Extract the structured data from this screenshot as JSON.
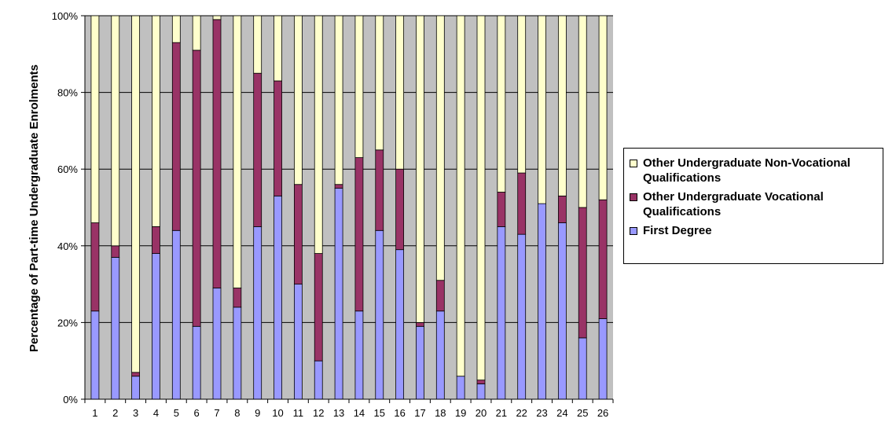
{
  "chart_data": {
    "type": "bar",
    "stacked": true,
    "percent_stacked": true,
    "ylabel": "Percentage of Part-time Undergraduate Enrolments",
    "xlabel": "",
    "ylim": [
      0,
      100
    ],
    "ytick_labels": [
      "0%",
      "20%",
      "40%",
      "60%",
      "80%",
      "100%"
    ],
    "grid": true,
    "legend_position": "right",
    "categories": [
      "1",
      "2",
      "3",
      "4",
      "5",
      "6",
      "7",
      "8",
      "9",
      "10",
      "11",
      "12",
      "13",
      "14",
      "15",
      "16",
      "17",
      "18",
      "19",
      "20",
      "21",
      "22",
      "23",
      "24",
      "25",
      "26"
    ],
    "series": [
      {
        "name": "First Degree",
        "color": "#9999ff",
        "values": [
          23,
          37,
          6,
          38,
          44,
          19,
          29,
          24,
          45,
          53,
          30,
          10,
          55,
          23,
          44,
          39,
          19,
          23,
          6,
          4,
          45,
          43,
          51,
          46,
          16,
          21
        ]
      },
      {
        "name": "Other Undergraduate Vocational Qualifications",
        "color": "#993366",
        "values": [
          23,
          3,
          1,
          7,
          49,
          72,
          70,
          5,
          40,
          30,
          26,
          28,
          1,
          40,
          21,
          21,
          1,
          8,
          0,
          1,
          9,
          16,
          0,
          7,
          34,
          31
        ]
      },
      {
        "name": "Other Undergraduate Non-Vocational Qualifications",
        "color": "#ffffcc",
        "values": [
          54,
          60,
          93,
          55,
          7,
          9,
          1,
          71,
          15,
          17,
          44,
          62,
          44,
          37,
          35,
          40,
          80,
          69,
          94,
          95,
          46,
          41,
          49,
          47,
          50,
          48
        ]
      }
    ]
  },
  "legend": {
    "items": [
      {
        "label": "Other Undergraduate Non-Vocational Qualifications",
        "color": "#ffffcc"
      },
      {
        "label": "Other Undergraduate Vocational Qualifications",
        "color": "#993366"
      },
      {
        "label": "First Degree",
        "color": "#9999ff"
      }
    ]
  },
  "colors": {
    "plot_background": "#c0c0c0",
    "gridline": "#000000"
  }
}
